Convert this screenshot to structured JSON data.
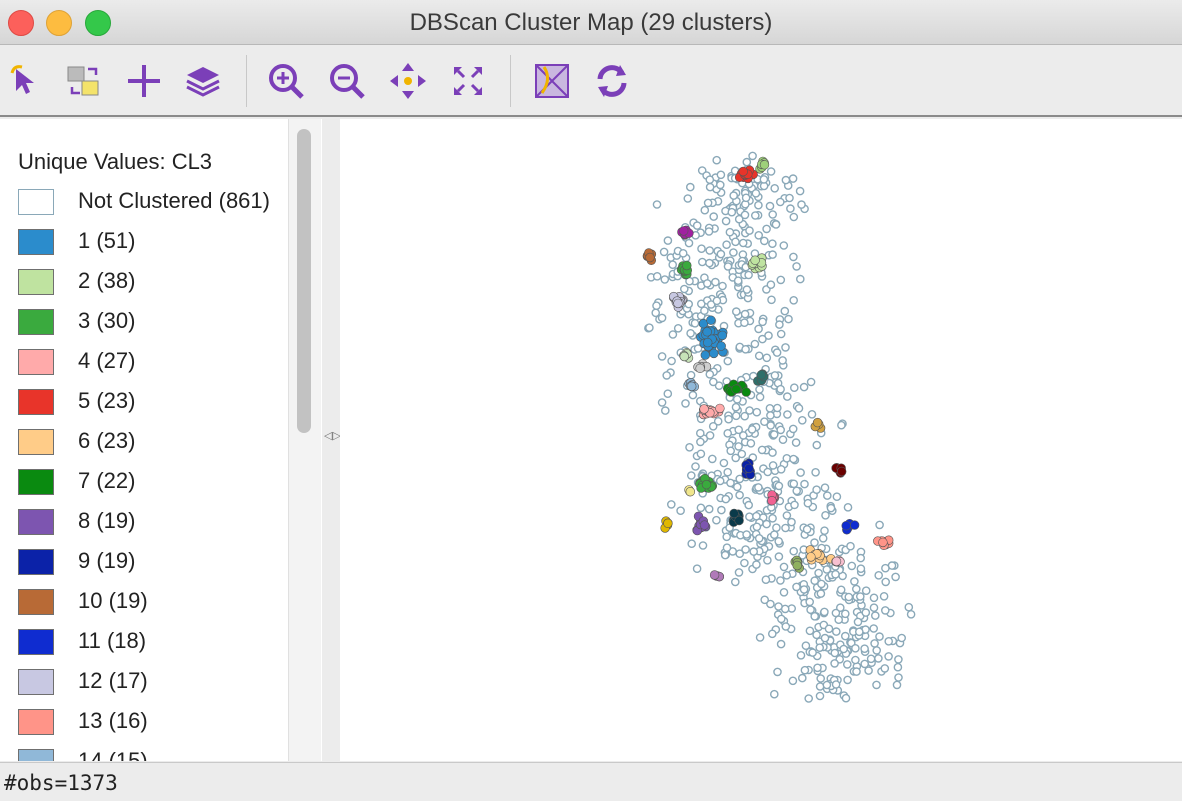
{
  "window": {
    "title": "DBScan Cluster Map (29 clusters)"
  },
  "toolbar": {
    "buttons": [
      {
        "icon": "select-pointer-icon"
      },
      {
        "icon": "selection-mode-icon"
      },
      {
        "icon": "add-icon"
      },
      {
        "icon": "layers-icon"
      },
      {
        "icon": "zoom-in-icon"
      },
      {
        "icon": "zoom-out-icon"
      },
      {
        "icon": "pan-icon"
      },
      {
        "icon": "full-extent-icon"
      },
      {
        "icon": "basemap-icon"
      },
      {
        "icon": "refresh-icon"
      }
    ],
    "accent_color": "#7b3fb8"
  },
  "legend": {
    "title": "Unique Values: CL3",
    "items": [
      {
        "label": "Not Clustered (861)",
        "color": "#ffffff"
      },
      {
        "label": "1 (51)",
        "color": "#2b8ccc"
      },
      {
        "label": "2 (38)",
        "color": "#bfe3a0"
      },
      {
        "label": "3 (30)",
        "color": "#3aaa3e"
      },
      {
        "label": "4 (27)",
        "color": "#ffaaaa"
      },
      {
        "label": "5 (23)",
        "color": "#e8342a"
      },
      {
        "label": "6 (23)",
        "color": "#ffcc88"
      },
      {
        "label": "7 (22)",
        "color": "#0a8a10"
      },
      {
        "label": "8 (19)",
        "color": "#7d55b0"
      },
      {
        "label": "9 (19)",
        "color": "#0b22a8"
      },
      {
        "label": "10 (19)",
        "color": "#b86a36"
      },
      {
        "label": "11 (18)",
        "color": "#0f2cd0"
      },
      {
        "label": "12 (17)",
        "color": "#c8c8e2"
      },
      {
        "label": "13 (16)",
        "color": "#ff9488"
      },
      {
        "label": "14 (15)",
        "color": "#90b8d8"
      }
    ]
  },
  "map": {
    "background_color": "#ffffff",
    "unclustered_stroke": "#8aa8b8",
    "seed": 1373
  },
  "status": {
    "text": "#obs=1373"
  }
}
